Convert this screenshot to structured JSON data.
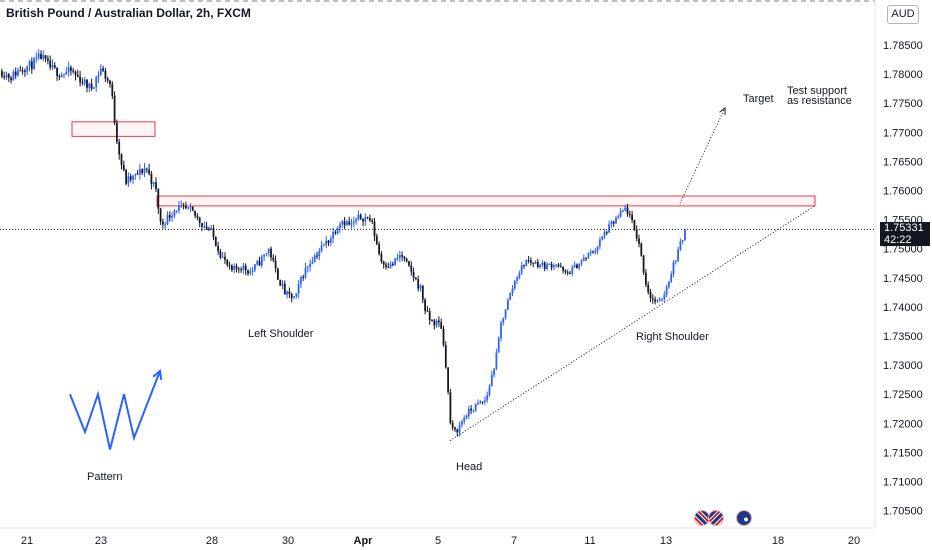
{
  "header": {
    "title": "British Pound / Australian Dollar, 2h, FXCM",
    "currency": "AUD"
  },
  "price_tag": {
    "price": "1.75331",
    "countdown": "42:22"
  },
  "annotations": {
    "target": "Target",
    "test_support": "Test support",
    "as_resistance": "as resistance",
    "left_shoulder": "Left Shoulder",
    "right_shoulder": "Right Shoulder",
    "head": "Head",
    "pattern": "Pattern"
  },
  "icons": [
    "uk-flag-icon",
    "uk-flag-icon",
    "australia-flag-icon"
  ],
  "colors": {
    "up": "#2962ff",
    "down": "#131722",
    "zone": "#f23645",
    "pattern_w": "#2962ff"
  },
  "chart_data": {
    "type": "candlestick",
    "title": "British Pound / Australian Dollar, 2h, FXCM",
    "ylim": [
      1.7,
      1.79
    ],
    "y_ticks": [
      "1.78500",
      "1.78000",
      "1.77500",
      "1.77000",
      "1.76500",
      "1.76000",
      "1.75500",
      "1.75000",
      "1.74500",
      "1.74000",
      "1.73500",
      "1.73000",
      "1.72500",
      "1.72000",
      "1.71500",
      "1.71000",
      "1.70500"
    ],
    "x_ticks": [
      "21",
      "23",
      "28",
      "30",
      "Apr",
      "5",
      "7",
      "11",
      "13",
      "18",
      "20"
    ],
    "path": [
      [
        0,
        1.7805
      ],
      [
        10,
        1.7795
      ],
      [
        20,
        1.781
      ],
      [
        30,
        1.7815
      ],
      [
        40,
        1.783
      ],
      [
        50,
        1.781
      ],
      [
        60,
        1.78
      ],
      [
        70,
        1.7805
      ],
      [
        80,
        1.779
      ],
      [
        90,
        1.7775
      ],
      [
        100,
        1.781
      ],
      [
        110,
        1.778
      ],
      [
        115,
        1.77
      ],
      [
        120,
        1.765
      ],
      [
        125,
        1.7615
      ],
      [
        135,
        1.7625
      ],
      [
        145,
        1.764
      ],
      [
        155,
        1.76
      ],
      [
        160,
        1.754
      ],
      [
        175,
        1.757
      ],
      [
        190,
        1.7565
      ],
      [
        200,
        1.7545
      ],
      [
        210,
        1.753
      ],
      [
        220,
        1.749
      ],
      [
        230,
        1.746
      ],
      [
        240,
        1.747
      ],
      [
        250,
        1.746
      ],
      [
        260,
        1.748
      ],
      [
        268,
        1.75
      ],
      [
        275,
        1.746
      ],
      [
        285,
        1.742
      ],
      [
        295,
        1.7415
      ],
      [
        300,
        1.745
      ],
      [
        310,
        1.748
      ],
      [
        320,
        1.75
      ],
      [
        330,
        1.752
      ],
      [
        340,
        1.755
      ],
      [
        350,
        1.754
      ],
      [
        360,
        1.7555
      ],
      [
        370,
        1.755
      ],
      [
        380,
        1.748
      ],
      [
        390,
        1.747
      ],
      [
        400,
        1.749
      ],
      [
        410,
        1.746
      ],
      [
        420,
        1.743
      ],
      [
        425,
        1.739
      ],
      [
        430,
        1.7375
      ],
      [
        440,
        1.737
      ],
      [
        445,
        1.73
      ],
      [
        450,
        1.719
      ],
      [
        455,
        1.7185
      ],
      [
        465,
        1.7215
      ],
      [
        475,
        1.723
      ],
      [
        485,
        1.724
      ],
      [
        495,
        1.731
      ],
      [
        500,
        1.737
      ],
      [
        505,
        1.74
      ],
      [
        515,
        1.745
      ],
      [
        525,
        1.748
      ],
      [
        535,
        1.7475
      ],
      [
        545,
        1.747
      ],
      [
        555,
        1.7475
      ],
      [
        565,
        1.7455
      ],
      [
        575,
        1.747
      ],
      [
        585,
        1.7485
      ],
      [
        595,
        1.75
      ],
      [
        605,
        1.753
      ],
      [
        615,
        1.755
      ],
      [
        625,
        1.757
      ],
      [
        630,
        1.755
      ],
      [
        638,
        1.751
      ],
      [
        645,
        1.744
      ],
      [
        650,
        1.7415
      ],
      [
        658,
        1.7405
      ],
      [
        665,
        1.743
      ],
      [
        672,
        1.747
      ],
      [
        680,
        1.751
      ],
      [
        686,
        1.7533
      ]
    ],
    "ranges": [
      [
        0,
        160,
        0.0018
      ],
      [
        160,
        440,
        0.0016
      ],
      [
        440,
        686,
        0.0013
      ]
    ],
    "zones": [
      {
        "x": [
          72,
          155
        ],
        "y": [
          1.7693,
          1.7718
        ]
      },
      {
        "x": [
          157,
          815
        ],
        "y": [
          1.75735,
          1.75905
        ]
      }
    ],
    "current_price": 1.75331,
    "neckline_support": [
      [
        450,
        1.717
      ],
      [
        815,
        1.7574
      ]
    ],
    "target_arrow": [
      [
        680,
        1.7578
      ],
      [
        725,
        1.7742
      ]
    ],
    "pattern_w": [
      [
        70,
        1.725
      ],
      [
        85,
        1.7185
      ],
      [
        98,
        1.725
      ],
      [
        110,
        1.7155
      ],
      [
        124,
        1.725
      ],
      [
        134,
        1.7175
      ],
      [
        160,
        1.729
      ]
    ]
  }
}
